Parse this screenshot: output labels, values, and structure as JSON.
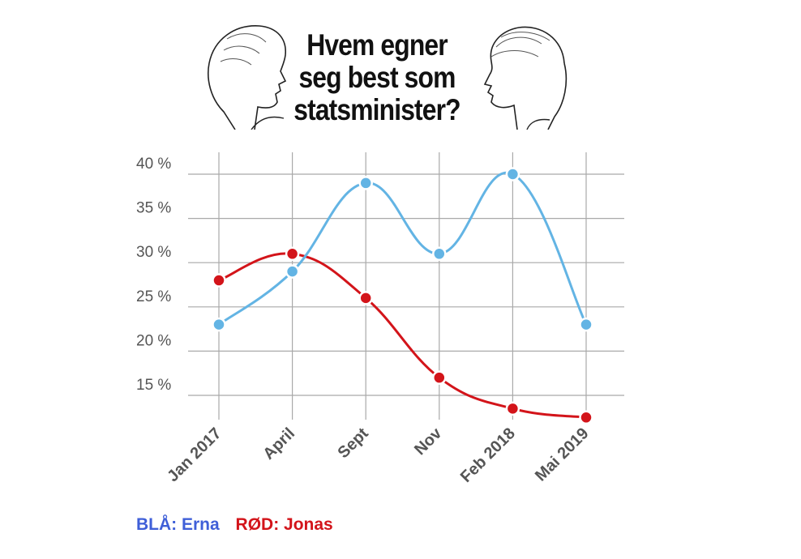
{
  "title_lines": [
    "Hvem egner",
    "seg best som",
    "statsminister?"
  ],
  "legend": {
    "blue": "BLÅ: Erna",
    "red": "RØD: Jonas"
  },
  "colors": {
    "blue_series": "#63b4e4",
    "red_series": "#d3141a",
    "legend_blue": "#3f5fd8",
    "grid": "#a9a9a9"
  },
  "chart_data": {
    "type": "line",
    "categories": [
      "Jan 2017",
      "April",
      "Sept",
      "Nov",
      "Feb 2018",
      "Mai 2019"
    ],
    "ylim": [
      12,
      40
    ],
    "yticks": [
      15,
      20,
      25,
      30,
      35,
      40
    ],
    "ytick_labels": [
      "15 %",
      "20 %",
      "25 %",
      "30 %",
      "35 %",
      "40 %"
    ],
    "grid": true,
    "series": [
      {
        "name": "BLÅ: Erna",
        "color": "#63b4e4",
        "values": [
          23,
          29,
          39,
          31,
          40,
          23
        ]
      },
      {
        "name": "RØD: Jonas",
        "color": "#d3141a",
        "values": [
          28,
          31,
          26,
          17,
          13.5,
          12.5
        ]
      }
    ]
  }
}
